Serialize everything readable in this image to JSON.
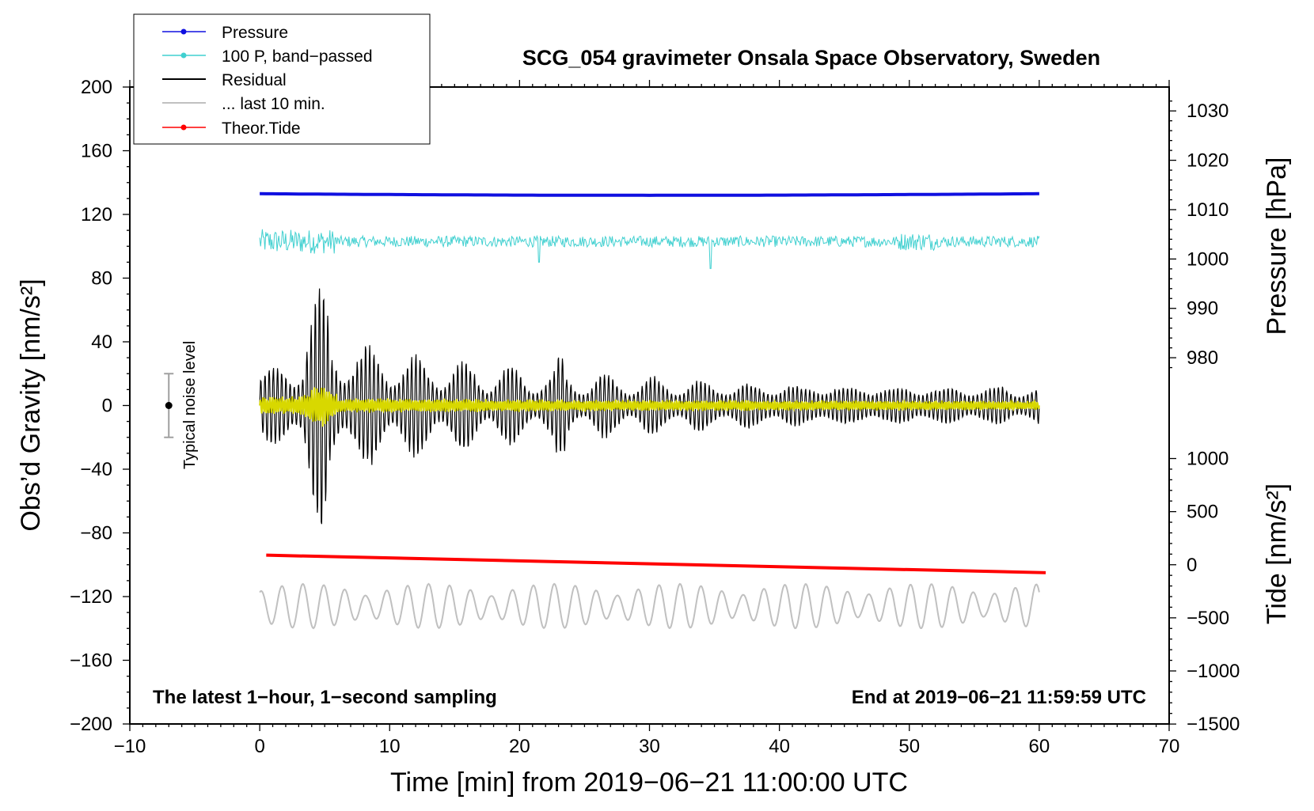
{
  "chart_data": {
    "type": "line",
    "title": "SCG_054 gravimeter Onsala Space Observatory, Sweden",
    "xlabel": "Time [min] from 2019−06−21 11:00:00 UTC",
    "ylabel": "Obs’d Gravity [nm/s²]",
    "y2label_pressure": "Pressure [hPa]",
    "y2label_tide": "Tide [nm/s²]",
    "xlim": [
      -10,
      70
    ],
    "ylim": [
      -200,
      200
    ],
    "xticks": [
      -10,
      0,
      10,
      20,
      30,
      40,
      50,
      60,
      70
    ],
    "xtick_labels": [
      "−10",
      "0",
      "10",
      "20",
      "30",
      "40",
      "50",
      "60",
      "70"
    ],
    "yticks": [
      200,
      160,
      120,
      80,
      40,
      0,
      -40,
      -80,
      -120,
      -160,
      -200
    ],
    "ytick_labels": [
      "200",
      "160",
      "120",
      "80",
      "40",
      "0",
      "−40",
      "−80",
      "−120",
      "−160",
      "−200"
    ],
    "pressure_axis": {
      "ticks": [
        1030,
        1020,
        1010,
        1000,
        990,
        980
      ],
      "tick_labels": [
        "1030",
        "1020",
        "1010",
        "1000",
        "990",
        "980"
      ],
      "gravity_at_1030": 185,
      "gravity_per_hpa": 3.1
    },
    "tide_axis": {
      "ticks": [
        1000,
        500,
        0,
        -500,
        -1000,
        -1500
      ],
      "tick_labels": [
        "1000",
        "500",
        "0",
        "−500",
        "−1000",
        "−1500"
      ],
      "gravity_at_0": -100,
      "gravity_per_unit": 0.0667
    },
    "legend": [
      {
        "label": "Pressure",
        "color": "#1010e0",
        "marker": true
      },
      {
        "label": "100 P, band−passed",
        "color": "#40d0d0",
        "marker": true
      },
      {
        "label": "Residual",
        "color": "#000000",
        "marker": false
      },
      {
        "label": "... last 10 min.",
        "color": "#c0c0c0",
        "marker": false
      },
      {
        "label": "Theor.Tide",
        "color": "#ff0000",
        "marker": true
      }
    ],
    "annotations": {
      "left": "The latest 1−hour, 1−second sampling",
      "right": "End at 2019−06−21 11:59:59 UTC",
      "noise": "Typical noise level"
    },
    "noise_bar": {
      "x": -7,
      "center": 0,
      "half_range": 20
    },
    "series": [
      {
        "name": "Pressure",
        "color": "#1010e0",
        "x_range": [
          0,
          60
        ],
        "y_start": 133,
        "y_mid": 132,
        "y_end": 133
      },
      {
        "name": "100 P, band−passed",
        "color": "#40d0d0",
        "x_range": [
          0,
          60
        ],
        "y_center": 103,
        "amplitude": 5
      },
      {
        "name": "Residual",
        "color": "#000000",
        "x_range": [
          0,
          60
        ],
        "y_center": 0,
        "y_max": 86,
        "y_min": -88,
        "peak_time": 4.7
      },
      {
        "name": "Residual filtered",
        "color": "#d8d800",
        "x_range": [
          0,
          60
        ],
        "y_center": 0,
        "amplitude": 6
      },
      {
        "name": "... last 10 min.",
        "color": "#c0c0c0",
        "x_range": [
          0,
          60
        ],
        "y_center": -126,
        "amplitude": 14
      },
      {
        "name": "Theor.Tide",
        "color": "#ff0000",
        "x_range": [
          0.5,
          60.5
        ],
        "y_start": -94,
        "y_end": -105
      }
    ],
    "colors": {
      "pressure": "#1010e0",
      "bandpassed": "#40d0d0",
      "residual": "#000000",
      "residual_filtered": "#d8d800",
      "last10": "#c0c0c0",
      "tide": "#ff0000",
      "noise": "#a0a0a0"
    }
  }
}
